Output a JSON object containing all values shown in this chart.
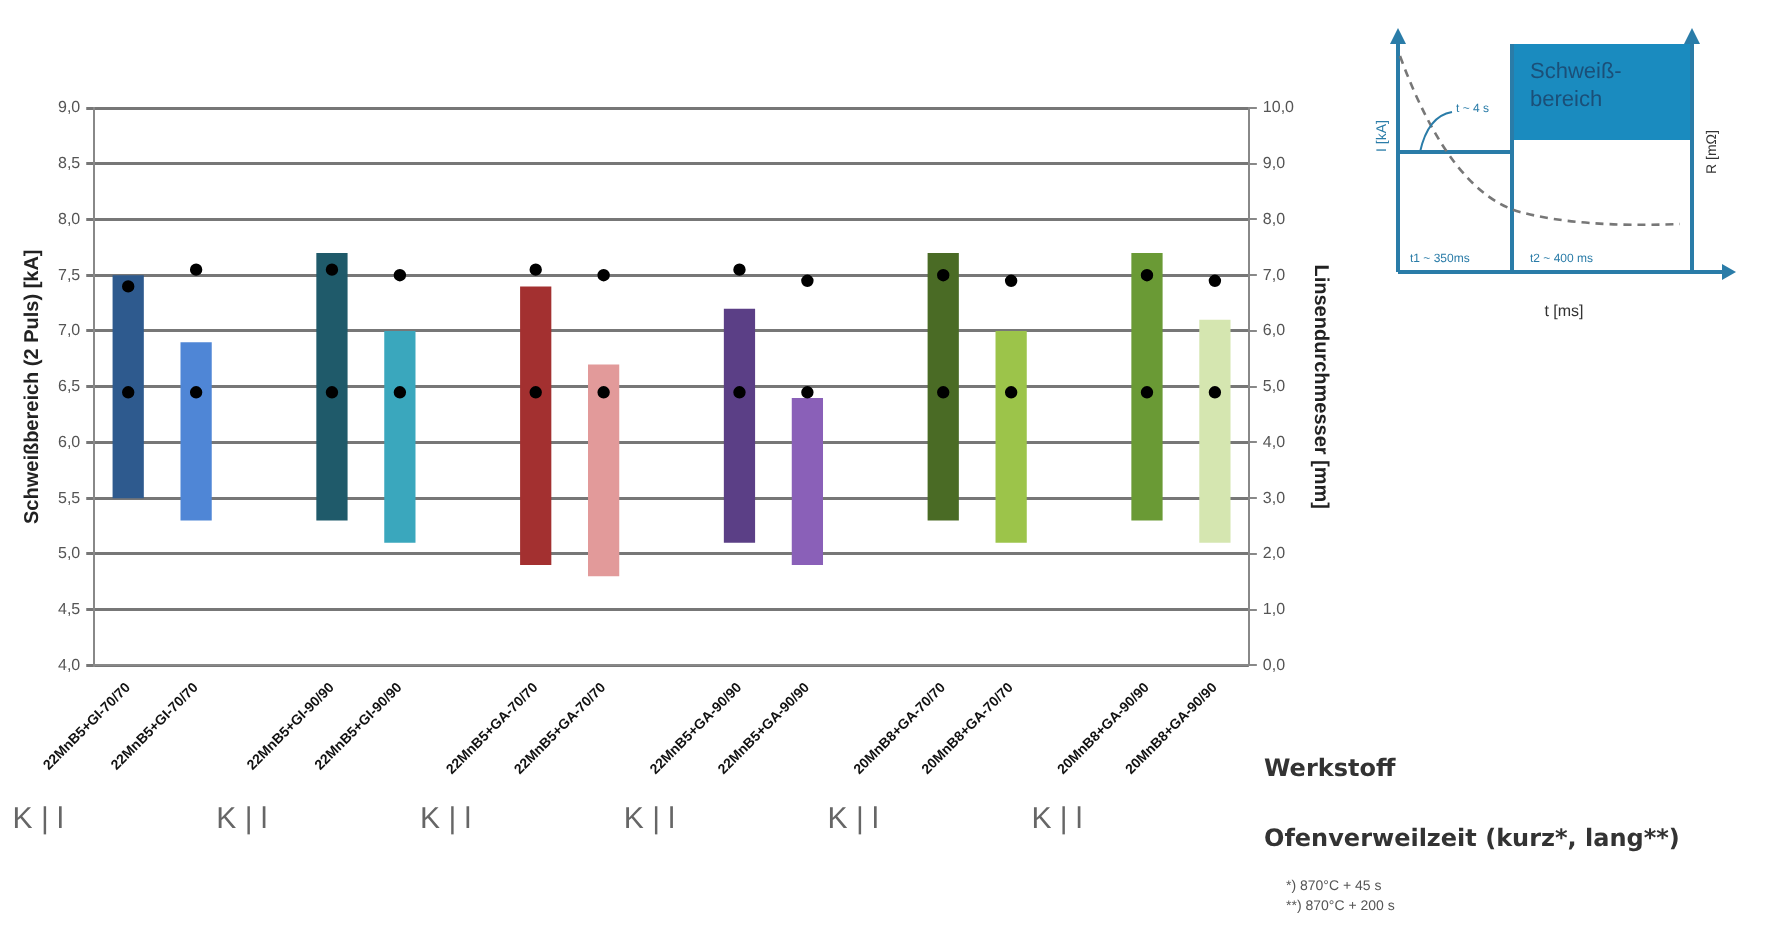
{
  "chart_data": {
    "type": "bar",
    "ylabel": "Schweißbereich (2 Puls) [kA]",
    "y2label": "Linsendurchmesser [mm]",
    "categories": [
      "22MnB5+GI-70/70",
      "22MnB5+GI-70/70",
      null,
      "22MnB5+GI-90/90",
      "22MnB5+GI-90/90",
      null,
      "22MnB5+GA-70/70",
      "22MnB5+GA-70/70",
      null,
      "22MnB5+GA-90/90",
      "22MnB5+GA-90/90",
      null,
      "20MnB8+GA-70/70",
      "20MnB8+GA-70/70",
      null,
      "20MnB8+GA-90/90",
      "20MnB8+GA-90/90"
    ],
    "series": [
      {
        "colors": [
          "#2e5a8e",
          "#4f86d6",
          null,
          "#1f5a6a",
          "#3aa7bd",
          null,
          "#a33030",
          "#e29a9a",
          null,
          "#5b3f86",
          "#8a60b8",
          null,
          "#4a6b25",
          "#9cc44a",
          null,
          "#6a9a35",
          "#d5e6b0"
        ],
        "base": [
          5.5,
          5.3,
          null,
          5.3,
          5.1,
          null,
          4.9,
          4.8,
          null,
          5.1,
          4.9,
          null,
          5.3,
          5.1,
          null,
          5.3,
          5.1
        ],
        "values": [
          2.0,
          1.6,
          null,
          2.4,
          1.9,
          null,
          2.5,
          1.9,
          null,
          2.1,
          1.5,
          null,
          2.4,
          1.9,
          null,
          2.4,
          2.0
        ]
      },
      {
        "type": "scatter",
        "axis": "y2",
        "color": "#000000",
        "values": [
          6.8,
          7.1,
          null,
          7.1,
          7.0,
          null,
          7.1,
          7.0,
          null,
          7.1,
          6.9,
          null,
          7.0,
          6.9,
          null,
          7.0,
          6.9
        ]
      },
      {
        "type": "scatter",
        "axis": "y2",
        "color": "#000000",
        "values": [
          4.9,
          4.9,
          null,
          4.9,
          4.9,
          null,
          4.9,
          4.9,
          null,
          4.9,
          4.9,
          null,
          4.9,
          4.9,
          null,
          4.9,
          4.9
        ]
      }
    ],
    "ylim": [
      4,
      9
    ],
    "yticks": [
      {
        "value": 4,
        "label": "4,0"
      },
      {
        "value": 4.5,
        "label": "4,5"
      },
      {
        "value": 5,
        "label": "5,0"
      },
      {
        "value": 5.5,
        "label": "5,5"
      },
      {
        "value": 6,
        "label": "6,0"
      },
      {
        "value": 6.5,
        "label": "6,5"
      },
      {
        "value": 7,
        "label": "7,0"
      },
      {
        "value": 7.5,
        "label": "7,5"
      },
      {
        "value": 8,
        "label": "8,0"
      },
      {
        "value": 8.5,
        "label": "8,5"
      },
      {
        "value": 9,
        "label": "9,0"
      }
    ],
    "y2lim": [
      0,
      10
    ],
    "y2ticks": [
      {
        "value": 0,
        "label": "0,0"
      },
      {
        "value": 1,
        "label": "1,0"
      },
      {
        "value": 2,
        "label": "2,0"
      },
      {
        "value": 3,
        "label": "3,0"
      },
      {
        "value": 4,
        "label": "4,0"
      },
      {
        "value": 5,
        "label": "5,0"
      },
      {
        "value": 6,
        "label": "6,0"
      },
      {
        "value": 7,
        "label": "7,0"
      },
      {
        "value": 8,
        "label": "8,0"
      },
      {
        "value": 9,
        "label": "9,0"
      },
      {
        "value": 10,
        "label": "10,0"
      }
    ],
    "grid": "y",
    "marker": "circle",
    "legend": false,
    "annotations": [
      "K | l",
      "K | l",
      "K | l",
      "K | l",
      "K | l",
      "K | l",
      "Werkstoff",
      "Ofenverweilzeit (kurz*, lang**)",
      "*) 870°C + 45 s",
      "**) 870°C + 200 s",
      "Schweiß-bereich",
      "I [kA]",
      "R [mΩ]",
      "t [ms]",
      "t1 ~ 350ms",
      "t2 ~ 400 ms",
      "t ~ 4 s"
    ]
  }
}
